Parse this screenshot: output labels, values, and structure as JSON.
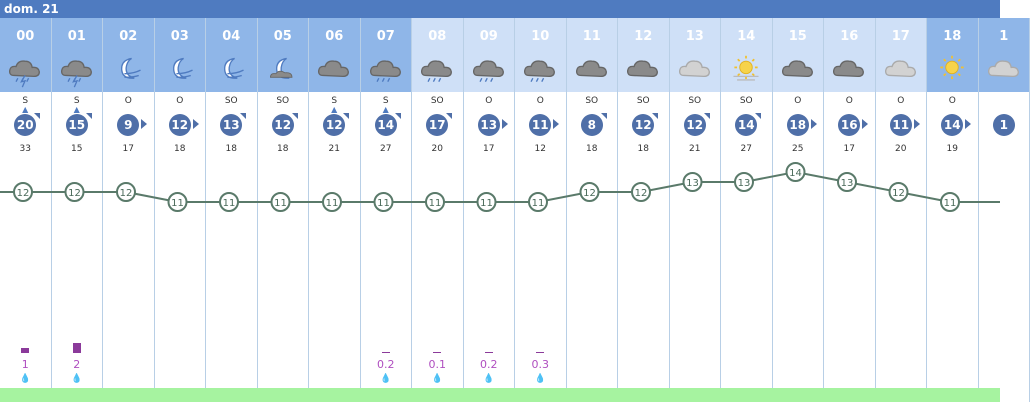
{
  "day_label": "dom. 21",
  "columns": [
    {
      "hour": "00",
      "icon": "cloud-storm-icon",
      "wind_dir": "S",
      "wind_speed": "20",
      "wind_marker": "corner",
      "gust": "33",
      "temp": "12",
      "precip": "1",
      "precip_level": 0.5,
      "night": true
    },
    {
      "hour": "01",
      "icon": "cloud-storm-icon",
      "wind_dir": "S",
      "wind_speed": "15",
      "wind_marker": "corner",
      "gust": "15",
      "temp": "12",
      "precip": "2",
      "precip_level": 1.0,
      "night": true
    },
    {
      "hour": "02",
      "icon": "moon-wind-icon",
      "wind_dir": "O",
      "wind_speed": "9",
      "wind_marker": "right",
      "gust": "17",
      "temp": "12",
      "precip": "",
      "precip_level": 0,
      "night": true
    },
    {
      "hour": "03",
      "icon": "moon-wind-icon",
      "wind_dir": "O",
      "wind_speed": "12",
      "wind_marker": "right",
      "gust": "18",
      "temp": "11",
      "precip": "",
      "precip_level": 0,
      "night": true
    },
    {
      "hour": "04",
      "icon": "moon-wind-icon",
      "wind_dir": "SO",
      "wind_speed": "13",
      "wind_marker": "corner",
      "gust": "18",
      "temp": "11",
      "precip": "",
      "precip_level": 0,
      "night": true
    },
    {
      "hour": "05",
      "icon": "moon-icon",
      "wind_dir": "SO",
      "wind_speed": "12",
      "wind_marker": "corner",
      "gust": "18",
      "temp": "11",
      "precip": "",
      "precip_level": 0,
      "night": true
    },
    {
      "hour": "06",
      "icon": "cloud-icon",
      "wind_dir": "S",
      "wind_speed": "12",
      "wind_marker": "corner",
      "gust": "21",
      "temp": "11",
      "precip": "",
      "precip_level": 0,
      "night": true
    },
    {
      "hour": "07",
      "icon": "cloud-rain-icon",
      "wind_dir": "S",
      "wind_speed": "14",
      "wind_marker": "corner",
      "gust": "27",
      "temp": "11",
      "precip": "0.2",
      "precip_level": 0.1,
      "night": true
    },
    {
      "hour": "08",
      "icon": "cloud-rain-icon",
      "wind_dir": "SO",
      "wind_speed": "17",
      "wind_marker": "corner",
      "gust": "20",
      "temp": "11",
      "precip": "0.1",
      "precip_level": 0.05,
      "night": false
    },
    {
      "hour": "09",
      "icon": "cloud-rain-icon",
      "wind_dir": "O",
      "wind_speed": "13",
      "wind_marker": "right",
      "gust": "17",
      "temp": "11",
      "precip": "0.2",
      "precip_level": 0.1,
      "night": false
    },
    {
      "hour": "10",
      "icon": "cloud-rain-icon",
      "wind_dir": "O",
      "wind_speed": "11",
      "wind_marker": "right",
      "gust": "12",
      "temp": "11",
      "precip": "0.3",
      "precip_level": 0.15,
      "night": false
    },
    {
      "hour": "11",
      "icon": "cloud-icon",
      "wind_dir": "SO",
      "wind_speed": "8",
      "wind_marker": "corner",
      "gust": "18",
      "temp": "12",
      "precip": "",
      "precip_level": 0,
      "night": false
    },
    {
      "hour": "12",
      "icon": "cloud-icon",
      "wind_dir": "SO",
      "wind_speed": "12",
      "wind_marker": "corner",
      "gust": "18",
      "temp": "12",
      "precip": "",
      "precip_level": 0,
      "night": false
    },
    {
      "hour": "13",
      "icon": "cloud-light-icon",
      "wind_dir": "SO",
      "wind_speed": "12",
      "wind_marker": "corner",
      "gust": "21",
      "temp": "13",
      "precip": "",
      "precip_level": 0,
      "night": false
    },
    {
      "hour": "14",
      "icon": "sun-haze-icon",
      "wind_dir": "SO",
      "wind_speed": "14",
      "wind_marker": "corner",
      "gust": "27",
      "temp": "13",
      "precip": "",
      "precip_level": 0,
      "night": false
    },
    {
      "hour": "15",
      "icon": "cloud-icon",
      "wind_dir": "O",
      "wind_speed": "18",
      "wind_marker": "right",
      "gust": "25",
      "temp": "14",
      "precip": "",
      "precip_level": 0,
      "night": false
    },
    {
      "hour": "16",
      "icon": "cloud-icon",
      "wind_dir": "O",
      "wind_speed": "16",
      "wind_marker": "right",
      "gust": "17",
      "temp": "13",
      "precip": "",
      "precip_level": 0,
      "night": false
    },
    {
      "hour": "17",
      "icon": "cloud-light-icon",
      "wind_dir": "O",
      "wind_speed": "11",
      "wind_marker": "right",
      "gust": "20",
      "temp": "12",
      "precip": "",
      "precip_level": 0,
      "night": false
    },
    {
      "hour": "18",
      "icon": "sun-icon",
      "wind_dir": "O",
      "wind_speed": "14",
      "wind_marker": "right",
      "gust": "19",
      "temp": "11",
      "precip": "",
      "precip_level": 0,
      "night": true
    },
    {
      "hour": "1",
      "icon": "cloud-light-icon",
      "wind_dir": "",
      "wind_speed": "1",
      "wind_marker": "none",
      "gust": "",
      "temp": "",
      "precip": "",
      "precip_level": 0,
      "night": true
    }
  ],
  "last_temp_value": "11",
  "colors": {
    "header": "#4f7bc0",
    "night_band": "#8fb6e8",
    "day_band": "#cfe0f7",
    "badge": "#4f6fa8",
    "temp_line": "#5a7a6a",
    "precip_bar": "#8b3a9a",
    "precip_text": "#b04fc0",
    "bottom_band": "#a6f3a0"
  }
}
